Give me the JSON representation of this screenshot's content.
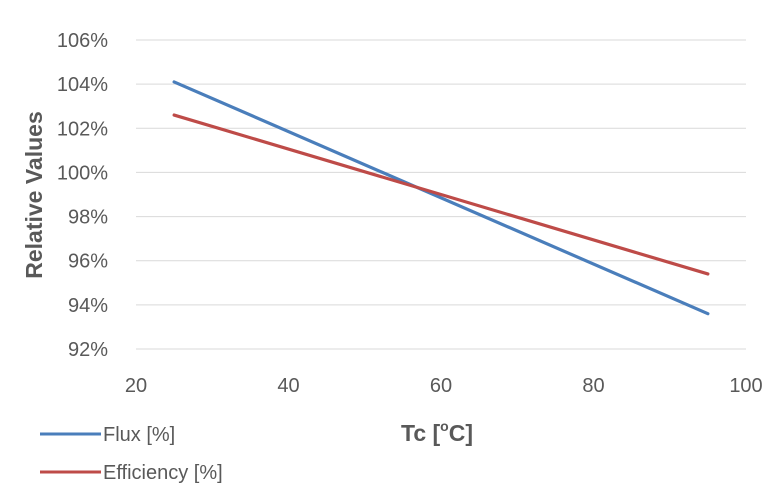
{
  "chart_data": {
    "type": "line",
    "title": "",
    "xlabel": {
      "prefix": "Tc [",
      "superscript": "o",
      "suffix": "C]"
    },
    "ylabel": "Relative Values",
    "xlim": [
      20,
      100
    ],
    "ylim": [
      92,
      106
    ],
    "x_ticks": [
      "20",
      "40",
      "60",
      "80",
      "100"
    ],
    "y_ticks": [
      "92%",
      "94%",
      "96%",
      "98%",
      "100%",
      "102%",
      "104%",
      "106%"
    ],
    "grid": "horizontal",
    "legend_position": "bottom-left",
    "series": [
      {
        "name": "Flux [%]",
        "color": "#4a7ebb",
        "x": [
          25,
          95
        ],
        "y": [
          104.1,
          93.6
        ]
      },
      {
        "name": "Efficiency [%]",
        "color": "#be4b48",
        "x": [
          25,
          95
        ],
        "y": [
          102.6,
          95.4
        ]
      }
    ]
  }
}
